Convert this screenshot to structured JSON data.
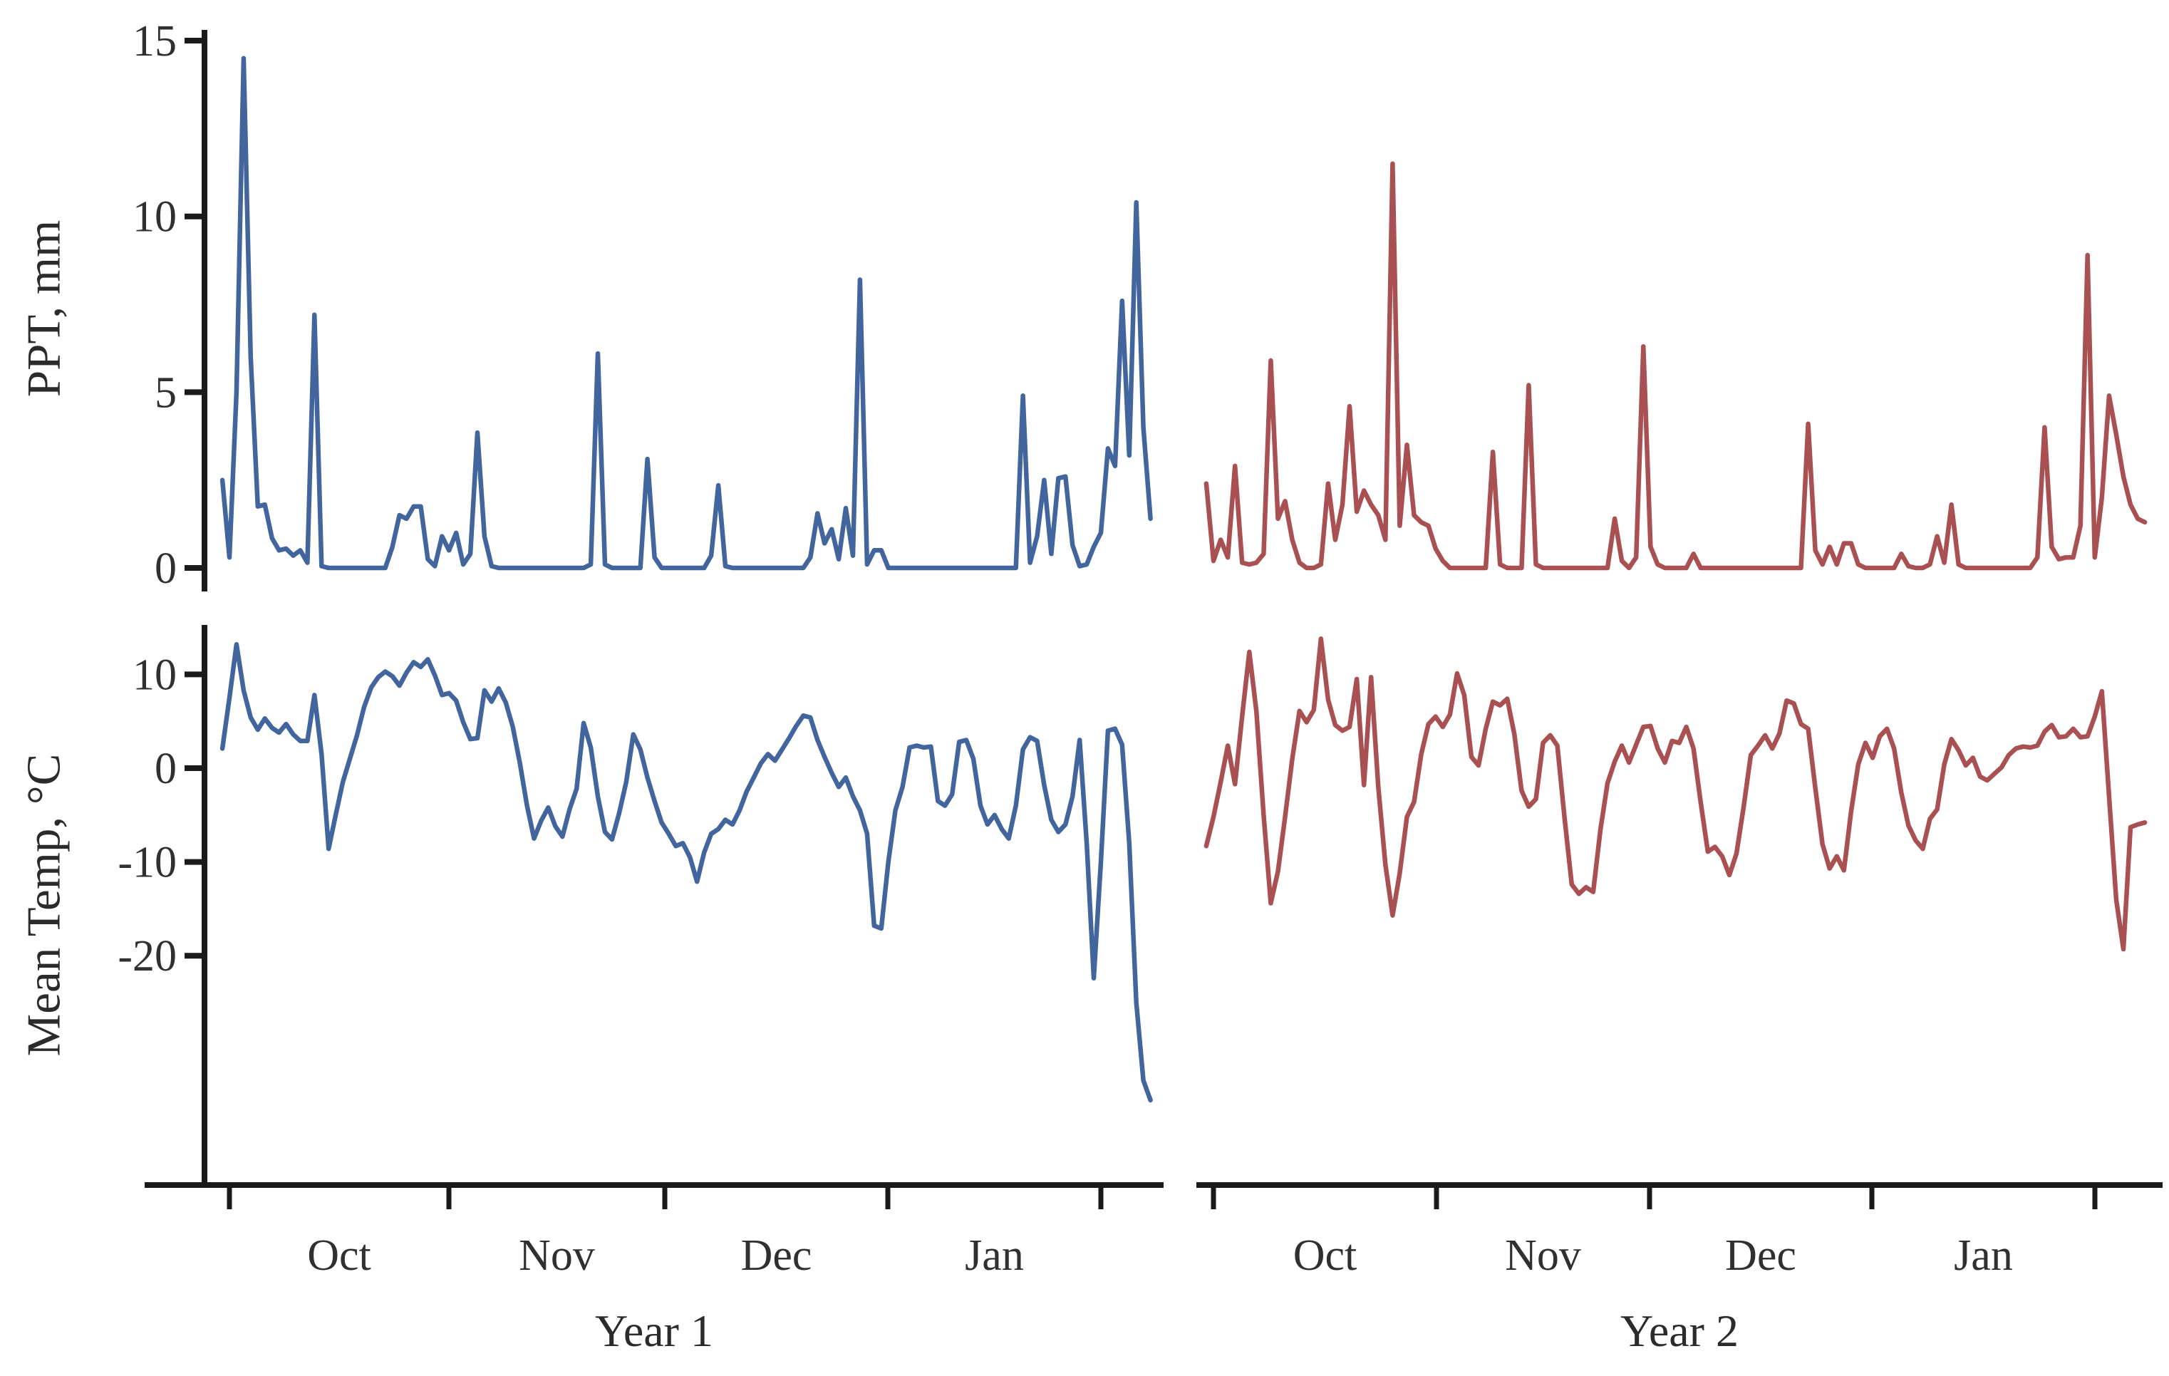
{
  "colors": {
    "year1_line": "#41659c",
    "year2_line": "#a85052",
    "axis_line": "#1a1a1a",
    "text": "#303030",
    "background": "#ffffff"
  },
  "labels": {
    "ppt_axis": "PPT, mm",
    "temp_axis": "Mean Temp, °C",
    "year1": "Year 1",
    "year2": "Year 2"
  },
  "chart_data": [
    {
      "id": "year1-ppt",
      "type": "line",
      "position": "top-left",
      "title": "Year 1 daily precipitation",
      "ylabel": "PPT, mm",
      "xlabel": "Year 1",
      "color": "#41659c",
      "ylim": [
        0,
        15.8
      ],
      "y_tick_values": [
        15,
        10,
        5,
        0
      ],
      "y_tick_labels": [
        "15",
        "10",
        "5",
        "0"
      ],
      "x_tick_labels": [
        "Oct",
        "Nov",
        "Dec",
        "Jan"
      ],
      "x_range": "late Sep to early Feb, daily",
      "values": [
        2.5,
        0.3,
        5.0,
        14.5,
        6.0,
        1.75,
        1.8,
        0.85,
        0.5,
        0.55,
        0.35,
        0.5,
        0.15,
        7.2,
        0.05,
        0,
        0,
        0,
        0,
        0,
        0,
        0,
        0,
        0,
        0.6,
        1.5,
        1.4,
        1.75,
        1.75,
        0.25,
        0.05,
        0.9,
        0.5,
        1.0,
        0.1,
        0.4,
        3.85,
        0.9,
        0.05,
        0,
        0,
        0,
        0,
        0,
        0,
        0,
        0,
        0,
        0,
        0,
        0,
        0,
        0.1,
        6.1,
        0.1,
        0,
        0,
        0,
        0,
        0,
        3.1,
        0.3,
        0,
        0,
        0,
        0,
        0,
        0,
        0,
        0.35,
        2.35,
        0.05,
        0,
        0,
        0,
        0,
        0,
        0,
        0,
        0,
        0,
        0,
        0,
        0.3,
        1.55,
        0.7,
        1.1,
        0.25,
        1.7,
        0.35,
        8.2,
        0.1,
        0.5,
        0.5,
        0,
        0,
        0,
        0,
        0,
        0,
        0,
        0,
        0,
        0,
        0,
        0,
        0,
        0,
        0,
        0,
        0,
        0,
        0,
        4.9,
        0.15,
        0.9,
        2.5,
        0.4,
        2.55,
        2.6,
        0.65,
        0.05,
        0.1,
        0.6,
        1.0,
        3.4,
        2.9,
        7.6,
        3.2,
        10.4,
        4.0,
        1.4
      ]
    },
    {
      "id": "year2-ppt",
      "type": "line",
      "position": "top-right",
      "title": "Year 2 daily precipitation",
      "ylabel": "PPT, mm",
      "xlabel": "Year 2",
      "color": "#a85052",
      "ylim": [
        0,
        15.8
      ],
      "y_tick_values": [
        15,
        10,
        5,
        0
      ],
      "y_tick_labels": [
        "15",
        "10",
        "5",
        "0"
      ],
      "x_tick_labels": [
        "Oct",
        "Nov",
        "Dec",
        "Jan"
      ],
      "x_range": "late Sep to early Feb, daily",
      "values": [
        2.4,
        0.2,
        0.8,
        0.3,
        2.9,
        0.15,
        0.1,
        0.15,
        0.4,
        5.9,
        1.4,
        1.9,
        0.8,
        0.15,
        0,
        0,
        0.1,
        2.4,
        0.8,
        1.8,
        4.6,
        1.6,
        2.2,
        1.8,
        1.5,
        0.8,
        11.5,
        1.2,
        3.5,
        1.5,
        1.3,
        1.2,
        0.55,
        0.2,
        0,
        0,
        0,
        0,
        0,
        0,
        3.3,
        0.1,
        0,
        0,
        0,
        5.2,
        0.1,
        0,
        0,
        0,
        0,
        0,
        0,
        0,
        0,
        0,
        0,
        1.4,
        0.2,
        0,
        0.3,
        6.3,
        0.6,
        0.1,
        0,
        0,
        0,
        0,
        0.4,
        0,
        0,
        0,
        0,
        0,
        0,
        0,
        0,
        0,
        0,
        0,
        0,
        0,
        0,
        0,
        4.1,
        0.5,
        0.1,
        0.6,
        0.1,
        0.7,
        0.7,
        0.1,
        0,
        0,
        0,
        0,
        0,
        0.4,
        0.05,
        0,
        0,
        0.1,
        0.9,
        0.15,
        1.8,
        0.1,
        0,
        0,
        0,
        0,
        0,
        0,
        0,
        0,
        0,
        0,
        0.3,
        4.0,
        0.6,
        0.25,
        0.3,
        0.3,
        1.2,
        8.9,
        0.3,
        2.0,
        4.9,
        3.8,
        2.6,
        1.8,
        1.4,
        1.3
      ]
    },
    {
      "id": "year1-temp",
      "type": "line",
      "position": "bottom-left",
      "title": "Year 1 daily mean temperature",
      "ylabel": "Mean Temp, °C",
      "xlabel": "Year 1",
      "color": "#41659c",
      "ylim": [
        -44,
        15.3
      ],
      "y_tick_values": [
        10,
        0,
        -10,
        -20
      ],
      "y_tick_labels": [
        "10",
        "0",
        "-10",
        "-20"
      ],
      "x_tick_labels": [
        "Oct",
        "Nov",
        "Dec",
        "Jan"
      ],
      "x_range": "late Sep to early Feb, daily",
      "values": [
        2.1,
        7.5,
        13.2,
        8.3,
        5.4,
        4.1,
        5.3,
        4.3,
        3.8,
        4.7,
        3.6,
        2.9,
        2.9,
        7.8,
        1.5,
        -8.6,
        -5.0,
        -1.5,
        1.0,
        3.5,
        6.5,
        8.6,
        9.7,
        10.3,
        9.8,
        8.8,
        10.2,
        11.3,
        10.8,
        11.6,
        9.9,
        7.8,
        8.0,
        7.2,
        4.9,
        3.1,
        3.2,
        8.3,
        7.1,
        8.5,
        7.0,
        4.4,
        0.5,
        -4.0,
        -7.5,
        -5.6,
        -4.2,
        -6.2,
        -7.3,
        -4.4,
        -2.2,
        4.8,
        2.2,
        -3.0,
        -6.8,
        -7.6,
        -4.8,
        -1.5,
        3.6,
        2.0,
        -1.0,
        -3.5,
        -5.8,
        -7.0,
        -8.3,
        -8.0,
        -9.5,
        -12.1,
        -9.0,
        -7.0,
        -6.5,
        -5.5,
        -6.0,
        -4.5,
        -2.5,
        -1.0,
        0.5,
        1.5,
        0.8,
        2.0,
        3.2,
        4.5,
        5.6,
        5.4,
        3.0,
        1.2,
        -0.5,
        -2.0,
        -1.0,
        -3.0,
        -4.5,
        -7.0,
        -16.8,
        -17.1,
        -10.0,
        -4.5,
        -2.0,
        2.2,
        2.4,
        2.2,
        2.3,
        -3.5,
        -4.0,
        -2.8,
        2.8,
        3.0,
        1.0,
        -4.0,
        -6.0,
        -5.0,
        -6.5,
        -7.5,
        -4.0,
        2.0,
        3.3,
        2.9,
        -1.8,
        -5.5,
        -6.8,
        -6.0,
        -3.0,
        3.0,
        -8.0,
        -22.4,
        -10.0,
        4.0,
        4.2,
        2.5,
        -8.0,
        -25.0,
        -33.3,
        -35.4
      ]
    },
    {
      "id": "year2-temp",
      "type": "line",
      "position": "bottom-right",
      "title": "Year 2 daily mean temperature",
      "ylabel": "Mean Temp, °C",
      "xlabel": "Year 2",
      "color": "#a85052",
      "ylim": [
        -44,
        15.3
      ],
      "y_tick_values": [
        10,
        0,
        -10,
        -20
      ],
      "y_tick_labels": [
        "10",
        "0",
        "-10",
        "-20"
      ],
      "x_tick_labels": [
        "Oct",
        "Nov",
        "Dec",
        "Jan"
      ],
      "x_range": "late Sep to early Feb, daily",
      "values": [
        -8.3,
        -5.2,
        -1.5,
        2.4,
        -1.7,
        5.5,
        12.4,
        6.0,
        -5.0,
        -14.4,
        -11.0,
        -5.2,
        1.0,
        6.1,
        4.9,
        6.2,
        13.8,
        7.3,
        4.6,
        4.0,
        4.4,
        9.5,
        -1.8,
        9.7,
        -2.0,
        -10.3,
        -15.7,
        -11.2,
        -5.2,
        -3.6,
        1.5,
        4.7,
        5.5,
        4.4,
        5.7,
        10.1,
        7.8,
        1.2,
        0.3,
        4.2,
        7.1,
        6.7,
        7.4,
        3.6,
        -2.4,
        -4.1,
        -3.3,
        2.7,
        3.5,
        2.4,
        -5.3,
        -12.4,
        -13.4,
        -12.7,
        -13.2,
        -6.6,
        -1.6,
        0.7,
        2.4,
        0.6,
        2.5,
        4.4,
        4.5,
        2.1,
        0.6,
        2.9,
        2.7,
        4.4,
        2.1,
        -3.6,
        -8.9,
        -8.4,
        -9.4,
        -11.4,
        -9.1,
        -4.1,
        1.4,
        2.4,
        3.5,
        2.1,
        3.7,
        7.2,
        6.9,
        4.7,
        4.2,
        -2.1,
        -8.1,
        -10.7,
        -9.4,
        -10.9,
        -4.6,
        0.4,
        2.7,
        1.1,
        3.4,
        4.2,
        2.1,
        -2.6,
        -6.1,
        -7.7,
        -8.6,
        -5.4,
        -4.4,
        0.4,
        3.1,
        1.9,
        0.3,
        1.1,
        -0.9,
        -1.3,
        -0.6,
        0.1,
        1.4,
        2.1,
        2.3,
        2.2,
        2.4,
        3.9,
        4.6,
        3.3,
        3.4,
        4.2,
        3.3,
        3.4,
        5.5,
        8.2,
        -3.0,
        -14.0,
        -19.3,
        -6.3,
        -6.0,
        -5.8
      ]
    }
  ]
}
